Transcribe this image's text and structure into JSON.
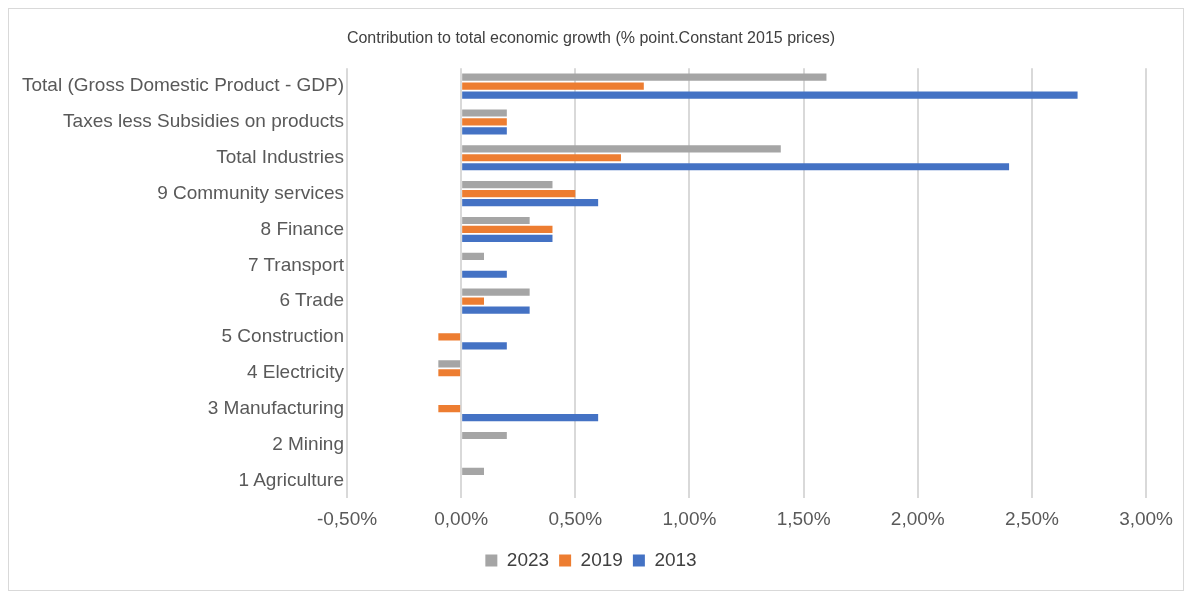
{
  "chart_data": {
    "type": "bar",
    "orientation": "horizontal",
    "title": "Contribution to total economic growth (% point.Constant 2015 prices)",
    "categories": [
      "Total (Gross Domestic Product - GDP)",
      "Taxes less Subsidies on products",
      "Total Industries",
      "9 Community services",
      "8 Finance",
      "7 Transport",
      "6 Trade",
      "5 Construction",
      "4 Electricity",
      "3 Manufacturing",
      "2 Mining",
      "1 Agriculture"
    ],
    "series": [
      {
        "name": "2023",
        "color": "#a5a5a5",
        "values": [
          1.6,
          0.2,
          1.4,
          0.4,
          0.3,
          0.1,
          0.3,
          0,
          -0.1,
          0,
          0.2,
          0.1
        ]
      },
      {
        "name": "2019",
        "color": "#ed7d31",
        "values": [
          0.8,
          0.2,
          0.7,
          0.5,
          0.4,
          0,
          0.1,
          -0.1,
          -0.1,
          -0.1,
          0,
          0
        ]
      },
      {
        "name": "2013",
        "color": "#4472c4",
        "values": [
          2.7,
          0.2,
          2.4,
          0.6,
          0.4,
          0.2,
          0.3,
          0.2,
          0,
          0.6,
          0,
          0
        ]
      }
    ],
    "xlim": [
      -0.5,
      3.0
    ],
    "xticks": [
      {
        "value": -0.5,
        "label": "-0,50%"
      },
      {
        "value": 0,
        "label": "0,00%"
      },
      {
        "value": 0.5,
        "label": "0,50%"
      },
      {
        "value": 1,
        "label": "1,00%"
      },
      {
        "value": 1.5,
        "label": "1,50%"
      },
      {
        "value": 2,
        "label": "2,00%"
      },
      {
        "value": 2.5,
        "label": "2,50%"
      },
      {
        "value": 3,
        "label": "3,00%"
      }
    ],
    "grid": "x",
    "legend": "bottom"
  }
}
